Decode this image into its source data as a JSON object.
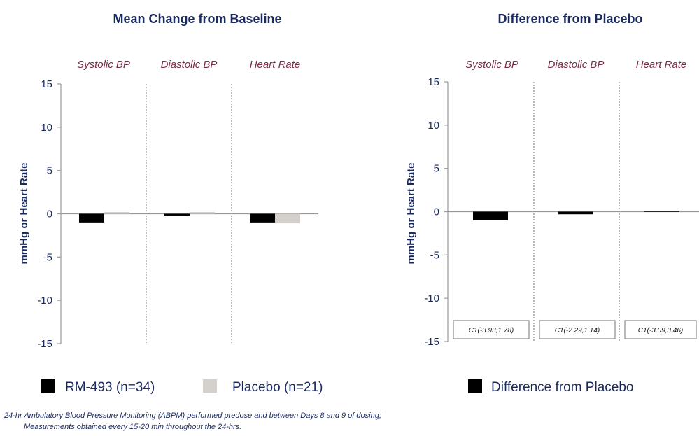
{
  "chart_data": [
    {
      "type": "bar",
      "title": "Mean Change from Baseline",
      "ylabel": "mmHg or Heart Rate",
      "ylim": [
        -15,
        15
      ],
      "yticks": [
        15,
        10,
        5,
        0,
        -5,
        -10,
        -15
      ],
      "panels": [
        "Systolic BP",
        "Diastolic BP",
        "Heart Rate"
      ],
      "series": [
        {
          "name": "RM-493 (n=34)",
          "color": "#000000",
          "values": [
            -1.0,
            -0.2,
            -1.0
          ]
        },
        {
          "name": "Placebo (n=21)",
          "color": "#d4d0cc",
          "values": [
            0.2,
            0.2,
            -1.1
          ]
        }
      ],
      "grid": false,
      "legend_position": "bottom"
    },
    {
      "type": "bar",
      "title": "Difference from Placebo",
      "ylabel": "mmHg or Heart Rate",
      "ylim": [
        -15,
        15
      ],
      "yticks": [
        15,
        10,
        5,
        0,
        -5,
        -10,
        -15
      ],
      "panels": [
        "Systolic BP",
        "Diastolic BP",
        "Heart Rate"
      ],
      "series": [
        {
          "name": "Difference from Placebo",
          "color": "#000000",
          "values": [
            -1.0,
            -0.3,
            0.1
          ]
        }
      ],
      "ci_labels": [
        "C1(-3.93,1.78)",
        "C1(-2.29,1.14)",
        "C1(-3.09,3.46)"
      ],
      "grid": false,
      "legend_position": "bottom"
    }
  ],
  "footnote": {
    "line1": "24-hr Ambulatory Blood Pressure Monitoring (ABPM) performed predose and between Days 8 and 9 of dosing;",
    "line2": "Measurements obtained every 15-20 min throughout the 24-hrs."
  }
}
